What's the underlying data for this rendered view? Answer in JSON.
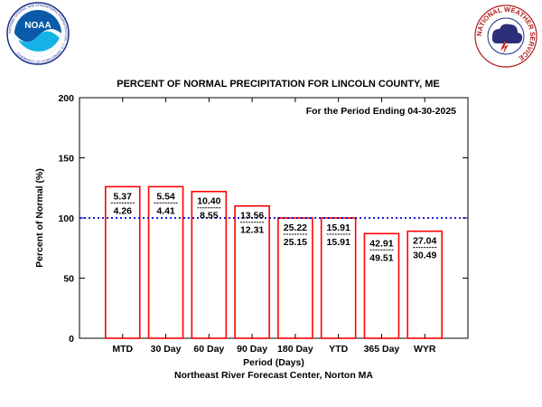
{
  "logos": {
    "noaa_wordmark": "NOAA",
    "noaa_ring": "NATIONAL OCEANIC AND ATMOSPHERIC ADMINISTRATION · U.S. DEPARTMENT OF COMMERCE",
    "nws_ring": "NATIONAL WEATHER SERVICE"
  },
  "chart_data": {
    "type": "bar",
    "title": "PERCENT OF NORMAL PRECIPITATION FOR LINCOLN COUNTY, ME",
    "annotation": "For the Period Ending 04-30-2025",
    "xlabel": "Period (Days)",
    "ylabel": "Percent of Normal (%)",
    "footer": "Northeast River Forecast Center, Norton MA",
    "ylim": [
      0,
      200
    ],
    "yticks": [
      "0",
      "50",
      "100",
      "150",
      "200"
    ],
    "normal_line": 100,
    "grid": false,
    "categories": [
      "MTD",
      "30 Day",
      "60 Day",
      "90 Day",
      "180 Day",
      "YTD",
      "365 Day",
      "WYR"
    ],
    "values": [
      126,
      126,
      122,
      110,
      100,
      100,
      87,
      89
    ],
    "observed_labels": [
      "5.37",
      "5.54",
      "10.40",
      "13.56",
      "25.22",
      "15.91",
      "42.91",
      "27.04"
    ],
    "normal_labels": [
      "4.26",
      "4.41",
      "8.55",
      "12.31",
      "25.15",
      "15.91",
      "49.51",
      "30.49"
    ],
    "colors": {
      "bar": "#ff0000",
      "normal_line": "#0000cc",
      "axis": "#000000"
    }
  }
}
